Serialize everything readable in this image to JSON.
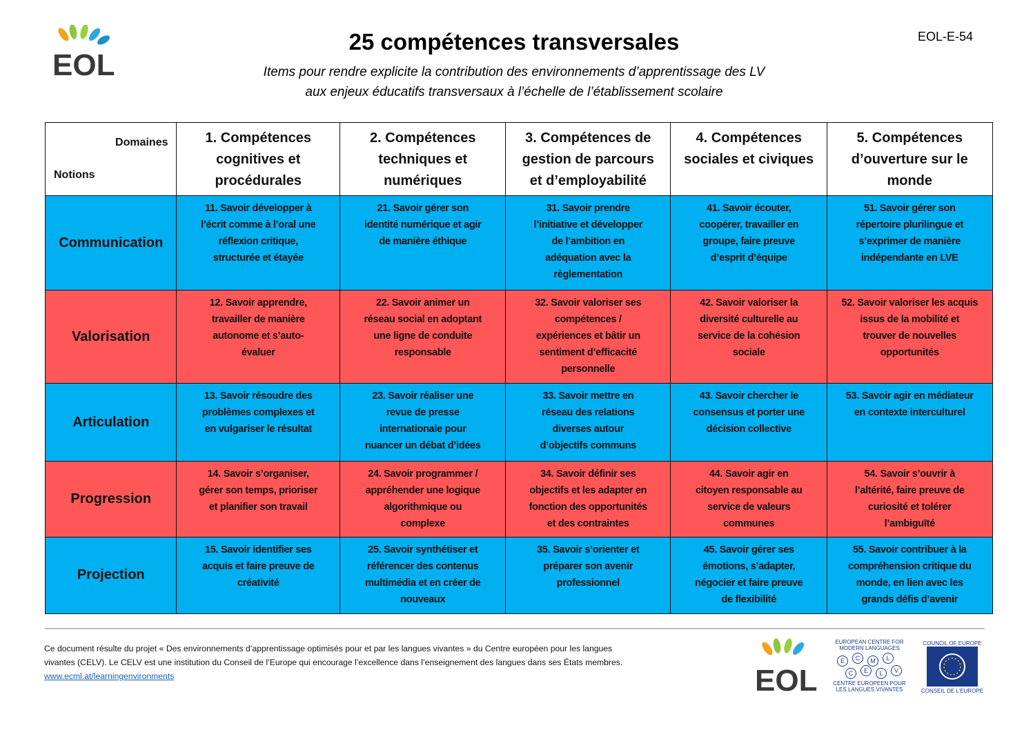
{
  "header": {
    "logo": "EOL",
    "title": "25 compétences transversales",
    "subtitle": [
      "Items pour rendre explicite la contribution des environnements d’apprentissage des LV",
      "aux enjeux éducatifs transversaux à l’échelle de l’établissement scolaire"
    ],
    "code": "EOL-E-54"
  },
  "table": {
    "corner": {
      "columns_label": "Domaines",
      "rows_label": "Notions"
    },
    "columns": [
      [
        "1. Compétences",
        "cognitives et",
        "procédurales"
      ],
      [
        "2. Compétences",
        "techniques et",
        "numériques"
      ],
      [
        "3. Compétences de",
        "gestion de parcours",
        "et d’employabilité"
      ],
      [
        "4. Compétences",
        "sociales et civiques"
      ],
      [
        "5. Compétences",
        "d’ouverture sur le",
        "monde"
      ]
    ],
    "rows": [
      {
        "notion": "Communication",
        "cells": [
          [
            "11. Savoir développer à",
            "l’écrit comme à l’oral une",
            "réflexion critique,",
            "structurée et étayée"
          ],
          [
            "21. Savoir gérer son",
            "identité numérique et agir",
            "de manière éthique"
          ],
          [
            "31. Savoir prendre",
            "l’initiative et développer",
            "de l’ambition en",
            "adéquation avec la",
            "règlementation"
          ],
          [
            "41. Savoir écouter,",
            "coopérer, travailler en",
            "groupe, faire preuve",
            "d’esprit d’équipe"
          ],
          [
            "51. Savoir gérer son",
            "répertoire plurilingue et",
            "s’exprimer de manière",
            "indépendante en LVE"
          ]
        ]
      },
      {
        "notion": "Valorisation",
        "cells": [
          [
            "12. Savoir apprendre,",
            "travailler de manière",
            "autonome et s’auto-",
            "évaluer"
          ],
          [
            "22. Savoir animer un",
            "réseau social en adoptant",
            "une ligne de conduite",
            "responsable"
          ],
          [
            "32. Savoir valoriser ses",
            "compétences /",
            "expériences et bâtir un",
            "sentiment d’efficacité",
            "personnelle"
          ],
          [
            "42. Savoir valoriser la",
            "diversité culturelle au",
            "service de la cohésion",
            "sociale"
          ],
          [
            "52. Savoir valoriser les acquis",
            "issus de la mobilité et",
            "trouver de nouvelles",
            "opportunités"
          ]
        ]
      },
      {
        "notion": "Articulation",
        "cells": [
          [
            "13. Savoir résoudre des",
            "problèmes complexes et",
            "en vulgariser le résultat"
          ],
          [
            "23. Savoir réaliser une",
            "revue de presse",
            "internationale pour",
            "nuancer un débat d’idées"
          ],
          [
            "33. Savoir mettre en",
            "réseau des relations",
            "diverses autour",
            "d’objectifs communs"
          ],
          [
            "43. Savoir chercher le",
            "consensus et porter une",
            "décision collective"
          ],
          [
            "53. Savoir agir en médiateur",
            "en contexte interculturel"
          ]
        ]
      },
      {
        "notion": "Progression",
        "cells": [
          [
            "14. Savoir s’organiser,",
            "gérer son temps, prioriser",
            "et planifier son travail"
          ],
          [
            "24. Savoir programmer /",
            "appréhender une logique",
            "algorithmique ou",
            "complexe"
          ],
          [
            "34. Savoir définir ses",
            "objectifs et les adapter en",
            "fonction des opportunités",
            "et des contraintes"
          ],
          [
            "44. Savoir agir en",
            "citoyen responsable au",
            "service de valeurs",
            "communes"
          ],
          [
            "54. Savoir s’ouvrir à",
            "l’altérité, faire preuve de",
            "curiosité et tolérer",
            "l’ambiguïté"
          ]
        ]
      },
      {
        "notion": "Projection",
        "cells": [
          [
            "15.  Savoir identifier ses",
            "acquis et faire preuve de",
            "créativité"
          ],
          [
            "25. Savoir synthétiser et",
            "référencer des contenus",
            "multimédia et en créer de",
            "nouveaux"
          ],
          [
            "35. Savoir s’orienter et",
            "préparer son avenir",
            "professionnel"
          ],
          [
            "45. Savoir gérer ses",
            "émotions, s’adapter,",
            "négocier et faire preuve",
            "de flexibilité"
          ],
          [
            "55. Savoir contribuer à la",
            "compréhension critique du",
            "monde, en lien avec les",
            "grands défis d’avenir"
          ]
        ]
      }
    ]
  },
  "footer": {
    "text": [
      "Ce document résulte du projet « Des environnements d’apprentissage optimisés pour et par les langues vivantes » du Centre européen pour les langues",
      "vivantes (CELV). Le CELV est une institution du Conseil de l’Europe qui encourage l’excellence dans l’enseignement des langues dans ses États membres."
    ],
    "link": "www.ecml.at/learningenvironments",
    "logos": {
      "eol": "EOL",
      "ecml_top": [
        "EUROPEAN CENTRE FOR",
        "MODERN LANGUAGES"
      ],
      "ecml_letters": [
        "E",
        "C",
        "M",
        "L",
        "C",
        "E",
        "L",
        "V"
      ],
      "ecml_bottom": [
        "CENTRE EUROPEEN POUR",
        "LES LANGUES VIVANTES"
      ],
      "coe_top": "COUNCIL OF EUROPE",
      "coe_bottom": "CONSEIL DE L’EUROPE"
    }
  }
}
